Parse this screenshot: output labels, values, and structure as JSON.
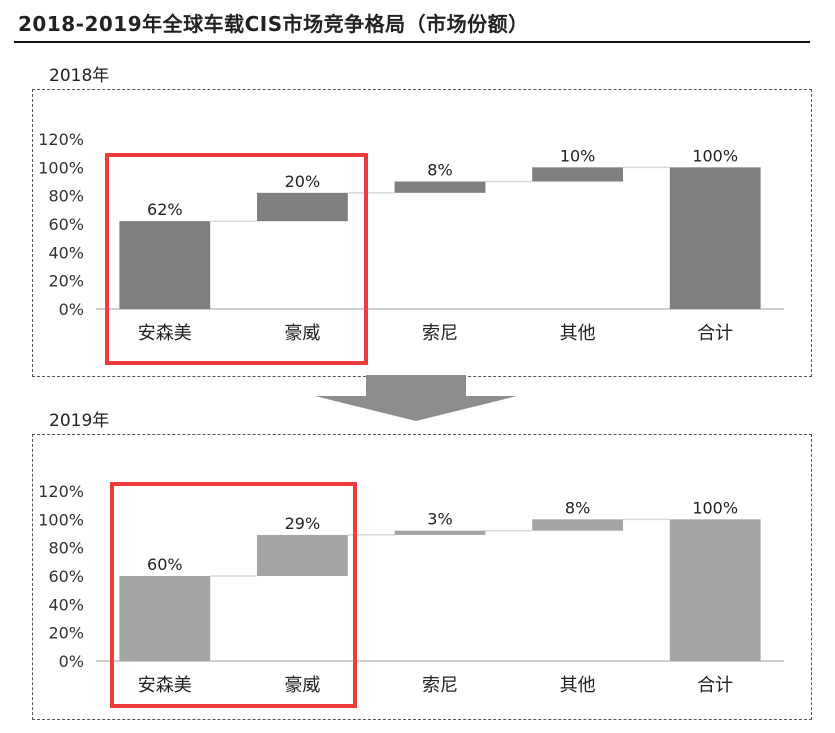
{
  "page": {
    "title": "2018-2019年全球车载CIS市场竞争格局（市场份额）"
  },
  "chart_data": [
    {
      "type": "bar",
      "variant": "waterfall",
      "panel_label": "2018年",
      "categories": [
        "安森美",
        "豪威",
        "索尼",
        "其他",
        "合计"
      ],
      "values": [
        62,
        20,
        8,
        10,
        100
      ],
      "data_labels": [
        "62%",
        "20%",
        "8%",
        "10%",
        "100%"
      ],
      "ylim": [
        0,
        120
      ],
      "yticks": [
        "0%",
        "20%",
        "40%",
        "60%",
        "80%",
        "100%",
        "120%"
      ],
      "bar_color": "#7f7f7f",
      "highlight": {
        "categories": [
          "安森美",
          "豪威"
        ],
        "color": "#ee3b3b"
      }
    },
    {
      "type": "bar",
      "variant": "waterfall",
      "panel_label": "2019年",
      "categories": [
        "安森美",
        "豪威",
        "索尼",
        "其他",
        "合计"
      ],
      "values": [
        60,
        29,
        3,
        8,
        100
      ],
      "data_labels": [
        "60%",
        "29%",
        "3%",
        "8%",
        "100%"
      ],
      "ylim": [
        0,
        120
      ],
      "yticks": [
        "0%",
        "20%",
        "40%",
        "60%",
        "80%",
        "100%",
        "120%"
      ],
      "bar_color": "#a5a5a5",
      "highlight": {
        "categories": [
          "安森美",
          "豪威"
        ],
        "color": "#ee3b3b"
      }
    }
  ],
  "colors": {
    "arrow": "#8c8c8c",
    "connector": "#d9d9d9",
    "axis": "#bfbfbf"
  }
}
